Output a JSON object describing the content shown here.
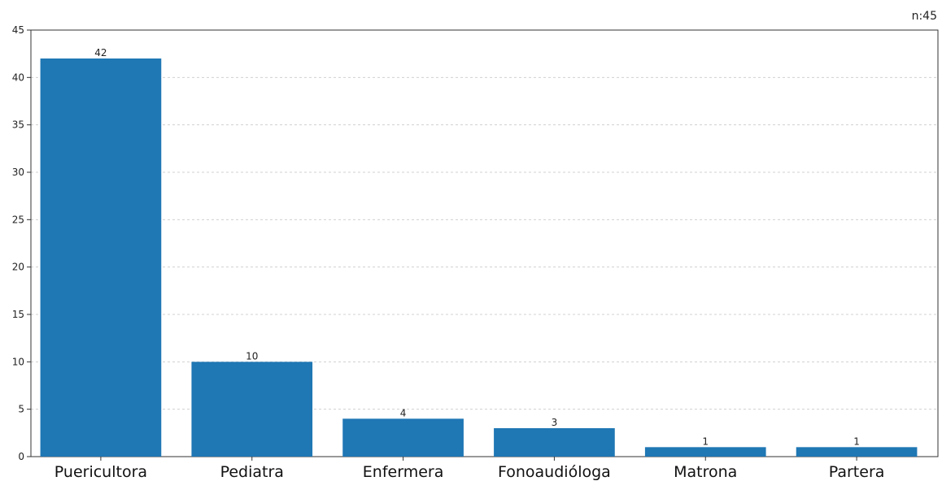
{
  "annotation": "n:45",
  "chart_data": {
    "type": "bar",
    "categories": [
      "Puericultora",
      "Pediatra",
      "Enfermera",
      "Fonoaudióloga",
      "Matrona",
      "Partera"
    ],
    "values": [
      42,
      10,
      4,
      3,
      1,
      1
    ],
    "data_labels": [
      "42",
      "10",
      "4",
      "3",
      "1",
      "1"
    ],
    "title": "",
    "xlabel": "",
    "ylabel": "",
    "ylim": [
      0,
      45
    ],
    "yticks": [
      0,
      5,
      10,
      15,
      20,
      25,
      30,
      35,
      40,
      45
    ],
    "grid": true,
    "bar_color": "#1f77b4"
  }
}
